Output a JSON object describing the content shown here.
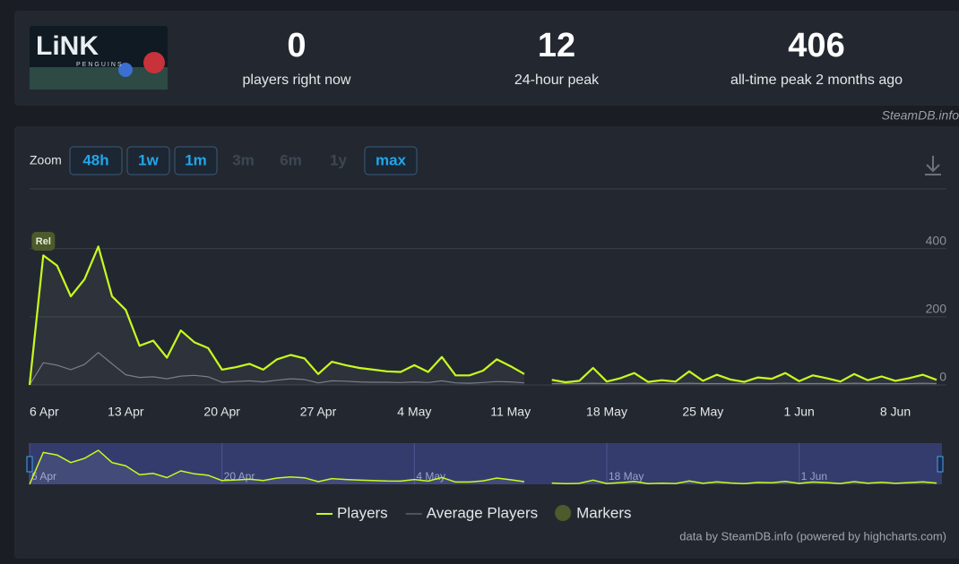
{
  "header": {
    "logo": {
      "title": "LiNK",
      "subtitle": "PENGUINS"
    },
    "stats": [
      {
        "value": 0,
        "label": "players right now"
      },
      {
        "value": 12,
        "label": "24-hour peak"
      },
      {
        "value": 406,
        "label": "all-time peak 2 months ago"
      }
    ],
    "watermark": "SteamDB.info"
  },
  "chart_data": {
    "type": "line",
    "zoom": {
      "label": "Zoom",
      "buttons": [
        {
          "text": "48h",
          "enabled": true
        },
        {
          "text": "1w",
          "enabled": true
        },
        {
          "text": "1m",
          "enabled": true
        },
        {
          "text": "3m",
          "enabled": false
        },
        {
          "text": "6m",
          "enabled": false
        },
        {
          "text": "1y",
          "enabled": false
        },
        {
          "text": "max",
          "enabled": true
        }
      ]
    },
    "categories": [
      "6 Apr",
      null,
      null,
      null,
      null,
      null,
      null,
      "13 Apr",
      null,
      null,
      null,
      null,
      null,
      null,
      "20 Apr",
      null,
      null,
      null,
      null,
      null,
      null,
      "27 Apr",
      null,
      null,
      null,
      null,
      null,
      null,
      "4 May",
      null,
      null,
      null,
      null,
      null,
      null,
      "11 May",
      null,
      null,
      null,
      null,
      null,
      null,
      "18 May",
      null,
      null,
      null,
      null,
      null,
      null,
      "25 May",
      null,
      null,
      null,
      null,
      null,
      null,
      "1 Jun",
      null,
      null,
      null,
      null,
      null,
      null,
      "8 Jun",
      null,
      null,
      null
    ],
    "series": [
      {
        "name": "Players",
        "color": "#c8fb1e",
        "values": [
          0,
          380,
          350,
          260,
          310,
          406,
          260,
          220,
          115,
          130,
          80,
          160,
          125,
          108,
          45,
          52,
          62,
          45,
          75,
          88,
          78,
          32,
          68,
          58,
          50,
          45,
          40,
          38,
          58,
          38,
          82,
          28,
          28,
          42,
          75,
          55,
          32,
          null,
          15,
          8,
          12,
          50,
          10,
          20,
          35,
          9,
          14,
          10,
          40,
          12,
          30,
          16,
          9,
          22,
          18,
          35,
          11,
          28,
          20,
          10,
          32,
          14,
          25,
          12,
          20,
          30,
          15
        ]
      },
      {
        "name": "Average Players",
        "color": "#7a7f87",
        "values": [
          0,
          65,
          58,
          45,
          60,
          95,
          62,
          30,
          22,
          24,
          18,
          26,
          28,
          24,
          8,
          10,
          12,
          9,
          14,
          18,
          16,
          6,
          12,
          11,
          9,
          8,
          8,
          7,
          9,
          7,
          12,
          6,
          5,
          7,
          10,
          9,
          6,
          null,
          4,
          4,
          4,
          5,
          4,
          4,
          5,
          4,
          4,
          4,
          5,
          4,
          4,
          4,
          4,
          4,
          4,
          5,
          4,
          4,
          4,
          4,
          5,
          4,
          4,
          4,
          4,
          5,
          4
        ]
      }
    ],
    "markers": {
      "name": "Markers",
      "color": "#4c5a2c",
      "flags": [
        {
          "label": "Rel"
        }
      ]
    },
    "ylim": [
      0,
      470
    ],
    "yticks": [
      0,
      200,
      400
    ],
    "grid": true,
    "legend": "bottom",
    "credits": "data by SteamDB.info (powered by highcharts.com)"
  }
}
